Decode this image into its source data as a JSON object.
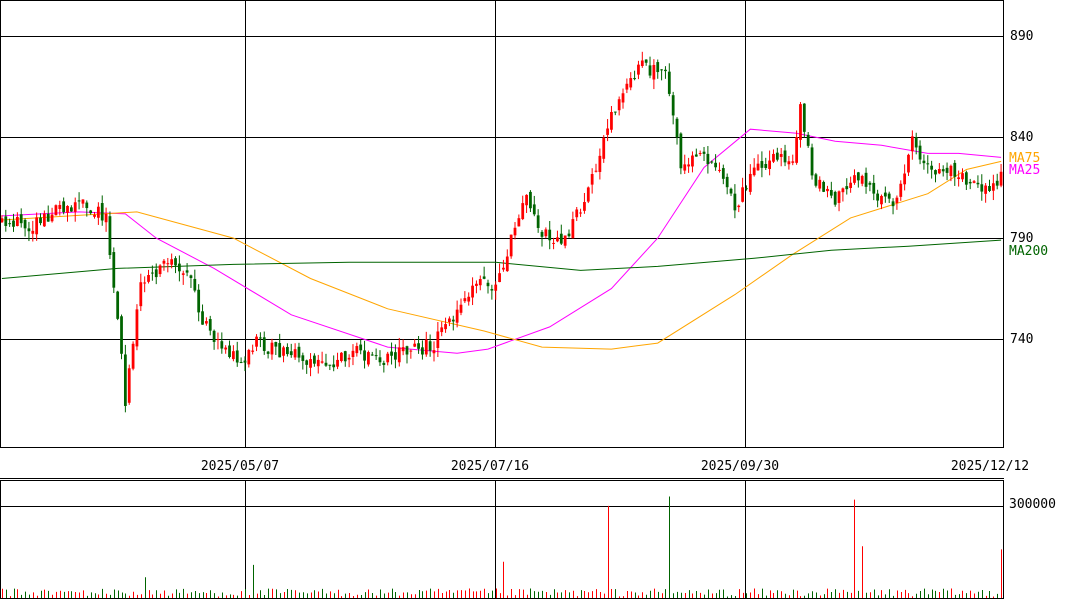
{
  "chart_data": [
    {
      "type": "candlestick",
      "x_tick_labels": [
        "2025/05/07",
        "2025/07/16",
        "2025/09/30",
        "2025/12/12"
      ],
      "y_tick_labels": [
        "890",
        "840",
        "790",
        "740"
      ],
      "y_ticks": [
        890,
        840,
        790,
        740
      ],
      "ylim": [
        686,
        908
      ],
      "colors": {
        "up": "#ff0000",
        "down": "#006400",
        "ma75": "#ffa500",
        "ma25": "#ff00ff",
        "ma200": "#006400"
      },
      "legend": [
        {
          "label": "MA75",
          "color": "#ffa500"
        },
        {
          "label": "MA25",
          "color": "#ff00ff"
        },
        {
          "label": "MA200",
          "color": "#006400"
        }
      ],
      "anchors": [
        [
          0,
          800
        ],
        [
          8,
          796
        ],
        [
          16,
          806
        ],
        [
          22,
          806
        ],
        [
          27,
          800
        ],
        [
          30,
          752
        ],
        [
          32,
          710
        ],
        [
          36,
          765
        ],
        [
          43,
          780
        ],
        [
          49,
          768
        ],
        [
          52,
          748
        ],
        [
          58,
          736
        ],
        [
          62,
          727
        ],
        [
          66,
          738
        ],
        [
          74,
          733
        ],
        [
          84,
          728
        ],
        [
          92,
          734
        ],
        [
          98,
          730
        ],
        [
          108,
          735
        ],
        [
          112,
          738
        ],
        [
          118,
          752
        ],
        [
          123,
          768
        ],
        [
          128,
          765
        ],
        [
          136,
          812
        ],
        [
          140,
          792
        ],
        [
          146,
          788
        ],
        [
          154,
          824
        ],
        [
          160,
          862
        ],
        [
          166,
          876
        ],
        [
          172,
          870
        ],
        [
          176,
          828
        ],
        [
          180,
          832
        ],
        [
          186,
          824
        ],
        [
          190,
          806
        ],
        [
          196,
          826
        ],
        [
          200,
          830
        ],
        [
          205,
          826
        ],
        [
          207,
          858
        ],
        [
          210,
          820
        ],
        [
          216,
          810
        ],
        [
          222,
          820
        ],
        [
          228,
          810
        ],
        [
          232,
          808
        ],
        [
          236,
          840
        ],
        [
          240,
          824
        ],
        [
          244,
          826
        ],
        [
          248,
          822
        ],
        [
          252,
          816
        ],
        [
          256,
          812
        ],
        [
          259,
          822
        ]
      ],
      "ma": [
        {
          "name": "MA25",
          "color": "#ff00ff",
          "points": [
            [
              0,
              801
            ],
            [
              20,
              803
            ],
            [
              32,
              802
            ],
            [
              40,
              790
            ],
            [
              55,
              775
            ],
            [
              75,
              752
            ],
            [
              100,
              736
            ],
            [
              118,
              733
            ],
            [
              126,
              735
            ],
            [
              142,
              746
            ],
            [
              158,
              765
            ],
            [
              170,
              790
            ],
            [
              182,
              825
            ],
            [
              194,
              844
            ],
            [
              206,
              842
            ],
            [
              216,
              838
            ],
            [
              228,
              836
            ],
            [
              240,
              832
            ],
            [
              248,
              832
            ],
            [
              259,
              830
            ]
          ]
        },
        {
          "name": "MA75",
          "color": "#ffa500",
          "points": [
            [
              0,
              799
            ],
            [
              35,
              803
            ],
            [
              60,
              790
            ],
            [
              80,
              770
            ],
            [
              100,
              755
            ],
            [
              125,
              744
            ],
            [
              140,
              736
            ],
            [
              158,
              735
            ],
            [
              170,
              738
            ],
            [
              190,
              762
            ],
            [
              205,
              782
            ],
            [
              220,
              800
            ],
            [
              240,
              812
            ],
            [
              250,
              824
            ],
            [
              259,
              828
            ]
          ]
        },
        {
          "name": "MA200",
          "color": "#006400",
          "points": [
            [
              0,
              770
            ],
            [
              30,
              775
            ],
            [
              60,
              777
            ],
            [
              90,
              778
            ],
            [
              128,
              778
            ],
            [
              150,
              774
            ],
            [
              170,
              776
            ],
            [
              195,
              780
            ],
            [
              215,
              784
            ],
            [
              235,
              786
            ],
            [
              259,
              789
            ]
          ]
        }
      ]
    },
    {
      "type": "bar",
      "name": "volume",
      "y_tick_labels": [
        "300000"
      ],
      "y_ticks": [
        300000
      ],
      "ylim": [
        0,
        380000
      ],
      "spikes": [
        [
          37,
          70000
        ],
        [
          65,
          110000
        ],
        [
          130,
          120000
        ],
        [
          157,
          300000
        ],
        [
          173,
          330000
        ],
        [
          221,
          320000
        ],
        [
          223,
          170000
        ],
        [
          259,
          160000
        ]
      ]
    }
  ]
}
